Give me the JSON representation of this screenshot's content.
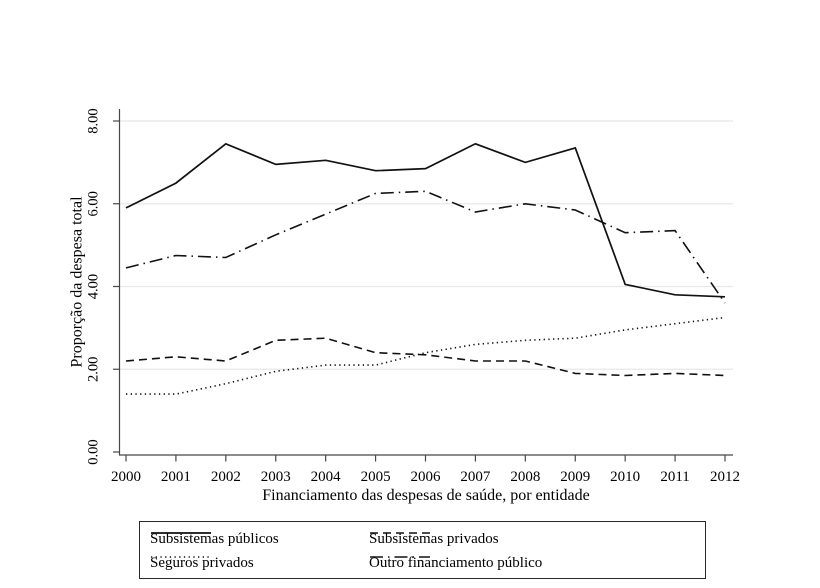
{
  "chart_data": {
    "type": "line",
    "title": "",
    "xlabel": "Financiamento das despesas de saúde, por entidade",
    "ylabel": "Proporção da despesa total",
    "x": [
      2000,
      2001,
      2002,
      2003,
      2004,
      2005,
      2006,
      2007,
      2008,
      2009,
      2010,
      2011,
      2012
    ],
    "x_tick_labels": [
      "2000",
      "2001",
      "2002",
      "2003",
      "2004",
      "2005",
      "2006",
      "2007",
      "2008",
      "2009",
      "2010",
      "2011",
      "2012"
    ],
    "y_ticks": [
      0,
      2,
      4,
      6,
      8
    ],
    "y_tick_labels": [
      "0.00",
      "2.00",
      "4.00",
      "6.00",
      "8.00"
    ],
    "ylim": [
      0,
      8.3
    ],
    "grid": "horizontal-light",
    "legend_position": "bottom-boxed-2x2",
    "series": [
      {
        "key": "subsistemas-publicos",
        "name": "Subsistemas públicos",
        "line_style": "solid",
        "values": [
          5.9,
          6.5,
          7.45,
          6.95,
          7.05,
          6.8,
          6.85,
          7.45,
          7.0,
          7.35,
          4.05,
          3.8,
          3.75
        ]
      },
      {
        "key": "subsistemas-privados",
        "name": "Subsistemas privados",
        "line_style": "dashed",
        "values": [
          2.2,
          2.3,
          2.2,
          2.7,
          2.75,
          2.4,
          2.35,
          2.2,
          2.2,
          1.9,
          1.85,
          1.9,
          1.85
        ]
      },
      {
        "key": "seguros-privados",
        "name": "Seguros privados",
        "line_style": "dotted",
        "values": [
          1.4,
          1.4,
          1.65,
          1.95,
          2.1,
          2.1,
          2.4,
          2.6,
          2.7,
          2.75,
          2.95,
          3.1,
          3.25
        ]
      },
      {
        "key": "outro-financiamento-publico",
        "name": "Outro financiamento público",
        "line_style": "dashdot",
        "values": [
          4.45,
          4.75,
          4.7,
          5.25,
          5.75,
          6.25,
          6.3,
          5.8,
          6.0,
          5.85,
          5.3,
          5.35,
          3.6
        ]
      }
    ],
    "colors": {
      "series_line": "#111111",
      "grid_line": "#e8e8e8",
      "axis_line": "#474747",
      "text": "#000000",
      "legend_border": "#2a2a2a",
      "background": "#ffffff"
    }
  }
}
